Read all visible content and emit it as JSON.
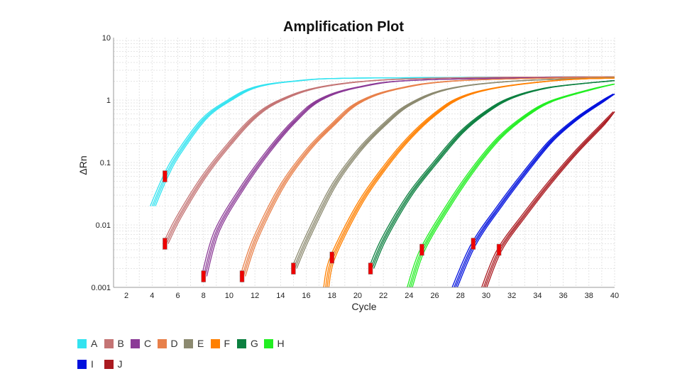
{
  "chart_data": {
    "type": "line",
    "title": "Amplification Plot",
    "xlabel": "Cycle",
    "ylabel": "ΔRn",
    "xlim": [
      1,
      40
    ],
    "ylim": [
      0.001,
      10
    ],
    "yscale": "log",
    "grid": true,
    "legend_position": "bottom-left",
    "xticks": [
      2,
      4,
      6,
      8,
      10,
      12,
      14,
      16,
      18,
      20,
      22,
      24,
      26,
      28,
      30,
      32,
      34,
      36,
      38,
      40
    ],
    "yticks": [
      "10",
      "1",
      "0.1",
      "0.01",
      "0.001"
    ],
    "yticks_values": [
      10,
      1,
      0.1,
      0.01,
      0.001
    ],
    "series": [
      {
        "name": "A",
        "color": "#33e3f0",
        "ct": 5,
        "points": [
          [
            4,
            0.02
          ],
          [
            5,
            0.06
          ],
          [
            6,
            0.14
          ],
          [
            8,
            0.5
          ],
          [
            10,
            1.0
          ],
          [
            12,
            1.6
          ],
          [
            15,
            2.0
          ],
          [
            20,
            2.25
          ],
          [
            40,
            2.35
          ]
        ]
      },
      {
        "name": "B",
        "color": "#c47474",
        "ct": 5,
        "points": [
          [
            5,
            0.005
          ],
          [
            6,
            0.013
          ],
          [
            8,
            0.06
          ],
          [
            10,
            0.2
          ],
          [
            12,
            0.55
          ],
          [
            14,
            1.0
          ],
          [
            17,
            1.6
          ],
          [
            22,
            2.1
          ],
          [
            30,
            2.3
          ],
          [
            40,
            2.35
          ]
        ]
      },
      {
        "name": "C",
        "color": "#8b3a96",
        "ct": 8,
        "points": [
          [
            8,
            0.0015
          ],
          [
            9,
            0.008
          ],
          [
            11,
            0.04
          ],
          [
            13,
            0.15
          ],
          [
            15,
            0.45
          ],
          [
            17,
            1.0
          ],
          [
            20,
            1.6
          ],
          [
            25,
            2.1
          ],
          [
            40,
            2.35
          ]
        ]
      },
      {
        "name": "D",
        "color": "#e8804a",
        "ct": 11,
        "points": [
          [
            11,
            0.0015
          ],
          [
            12,
            0.006
          ],
          [
            14,
            0.04
          ],
          [
            16,
            0.15
          ],
          [
            18,
            0.4
          ],
          [
            20,
            0.9
          ],
          [
            23,
            1.5
          ],
          [
            28,
            2.05
          ],
          [
            40,
            2.35
          ]
        ]
      },
      {
        "name": "E",
        "color": "#8c8a70",
        "ct": 15,
        "points": [
          [
            15,
            0.002
          ],
          [
            16,
            0.006
          ],
          [
            18,
            0.04
          ],
          [
            20,
            0.15
          ],
          [
            22,
            0.4
          ],
          [
            24,
            0.85
          ],
          [
            27,
            1.5
          ],
          [
            32,
            2.0
          ],
          [
            40,
            2.3
          ]
        ]
      },
      {
        "name": "F",
        "color": "#ff8000",
        "ct": 18,
        "points": [
          [
            17.5,
            0.001
          ],
          [
            18,
            0.003
          ],
          [
            20,
            0.02
          ],
          [
            22,
            0.08
          ],
          [
            24,
            0.25
          ],
          [
            26,
            0.6
          ],
          [
            28,
            1.1
          ],
          [
            31,
            1.6
          ],
          [
            36,
            2.1
          ],
          [
            40,
            2.25
          ]
        ]
      },
      {
        "name": "G",
        "color": "#0c8040",
        "ct": 21,
        "points": [
          [
            21,
            0.002
          ],
          [
            22,
            0.006
          ],
          [
            24,
            0.03
          ],
          [
            26,
            0.1
          ],
          [
            28,
            0.3
          ],
          [
            30,
            0.65
          ],
          [
            32,
            1.1
          ],
          [
            35,
            1.6
          ],
          [
            40,
            2.05
          ]
        ]
      },
      {
        "name": "H",
        "color": "#22ee22",
        "ct": 25,
        "points": [
          [
            24,
            0.001
          ],
          [
            25,
            0.004
          ],
          [
            27,
            0.02
          ],
          [
            29,
            0.08
          ],
          [
            31,
            0.25
          ],
          [
            33,
            0.55
          ],
          [
            35,
            0.95
          ],
          [
            38,
            1.45
          ],
          [
            40,
            1.8
          ]
        ]
      },
      {
        "name": "I",
        "color": "#0010dd",
        "ct": 29,
        "points": [
          [
            27.5,
            0.001
          ],
          [
            29,
            0.005
          ],
          [
            31,
            0.02
          ],
          [
            33,
            0.07
          ],
          [
            35,
            0.22
          ],
          [
            37,
            0.5
          ],
          [
            39,
            0.95
          ],
          [
            40,
            1.25
          ]
        ]
      },
      {
        "name": "J",
        "color": "#aa1a20",
        "ct": 31,
        "points": [
          [
            29.8,
            0.001
          ],
          [
            31,
            0.004
          ],
          [
            33,
            0.015
          ],
          [
            35,
            0.05
          ],
          [
            37,
            0.15
          ],
          [
            39,
            0.4
          ],
          [
            40,
            0.65
          ]
        ]
      }
    ]
  }
}
